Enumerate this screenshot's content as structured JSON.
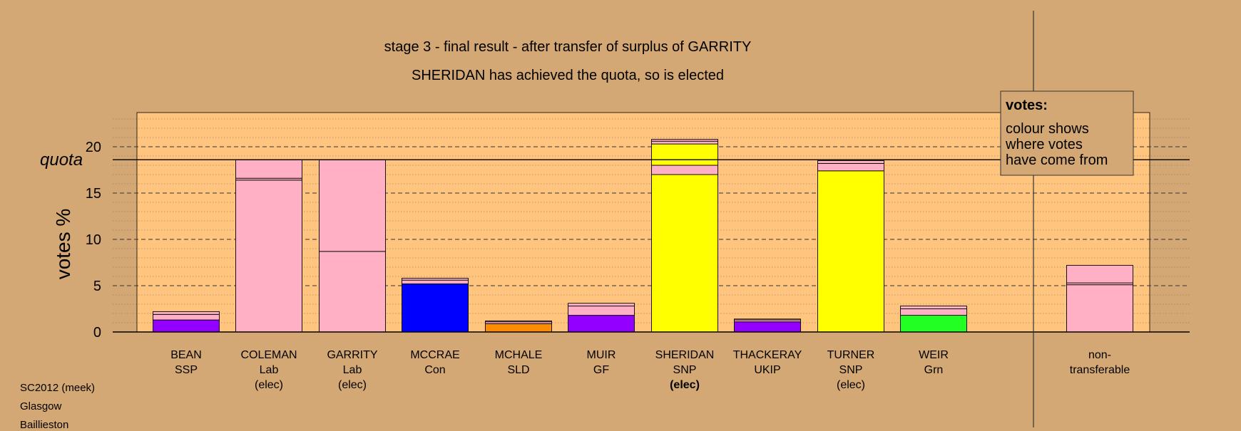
{
  "chart_data": {
    "type": "bar",
    "stacked": true,
    "title": "stage 3 - final result - after transfer of surplus of GARRITY",
    "subtitle": "SHERIDAN has achieved the quota, so is elected",
    "ylabel": "votes %",
    "xlabel": "",
    "ylim": [
      0,
      23.5
    ],
    "yticks": [
      0,
      5,
      10,
      15,
      20
    ],
    "quota_label": "quota",
    "quota_value": 18.6,
    "grid": true,
    "legend": {
      "placement": "top-right",
      "title": "votes:",
      "lines": [
        "colour shows",
        "where votes",
        "have come from"
      ]
    },
    "categories": [
      {
        "name": "BEAN",
        "party": "SSP",
        "status": ""
      },
      {
        "name": "COLEMAN",
        "party": "Lab",
        "status": "(elec)"
      },
      {
        "name": "GARRITY",
        "party": "Lab",
        "status": "(elec)"
      },
      {
        "name": "MCCRAE",
        "party": "Con",
        "status": ""
      },
      {
        "name": "MCHALE",
        "party": "SLD",
        "status": ""
      },
      {
        "name": "MUIR",
        "party": "GF",
        "status": ""
      },
      {
        "name": "SHERIDAN",
        "party": "SNP",
        "status": "(elec)",
        "bold_status": true
      },
      {
        "name": "THACKERAY",
        "party": "UKIP",
        "status": ""
      },
      {
        "name": "TURNER",
        "party": "SNP",
        "status": "(elec)"
      },
      {
        "name": "WEIR",
        "party": "Grn",
        "status": ""
      }
    ],
    "bars": [
      {
        "segments": [
          {
            "value": 1.3,
            "color": "#9400FF"
          },
          {
            "value": 0.6,
            "color": "#FFB0C4"
          },
          {
            "value": 0.3,
            "color": "#FFB0C4"
          }
        ]
      },
      {
        "segments": [
          {
            "value": 16.4,
            "color": "#FFB0C4"
          },
          {
            "value": 0.2,
            "color": "#FFB0C4"
          },
          {
            "value": 2.0,
            "color": "#FFB0C4"
          }
        ]
      },
      {
        "segments": [
          {
            "value": 8.7,
            "color": "#FFB0C4"
          },
          {
            "value": 9.9,
            "color": "#FFB0C4"
          }
        ]
      },
      {
        "segments": [
          {
            "value": 5.2,
            "color": "#0000FF"
          },
          {
            "value": 0.4,
            "color": "#FFB0C4"
          },
          {
            "value": 0.2,
            "color": "#FFB0C4"
          }
        ]
      },
      {
        "segments": [
          {
            "value": 0.9,
            "color": "#FF8C00"
          },
          {
            "value": 0.2,
            "color": "#FFB0C4"
          },
          {
            "value": 0.1,
            "color": "#FFB0C4"
          }
        ]
      },
      {
        "segments": [
          {
            "value": 1.8,
            "color": "#9400FF"
          },
          {
            "value": 1.0,
            "color": "#FFB0C4"
          },
          {
            "value": 0.3,
            "color": "#FFB0C4"
          }
        ]
      },
      {
        "segments": [
          {
            "value": 17.0,
            "color": "#FFFF00"
          },
          {
            "value": 1.0,
            "color": "#FFB0C4"
          },
          {
            "value": 2.3,
            "color": "#FFFF00"
          },
          {
            "value": 0.3,
            "color": "#FFB0C4"
          },
          {
            "value": 0.2,
            "color": "#FFB0C4"
          }
        ]
      },
      {
        "segments": [
          {
            "value": 1.1,
            "color": "#9400FF"
          },
          {
            "value": 0.2,
            "color": "#FFB0C4"
          },
          {
            "value": 0.1,
            "color": "#FFB0C4"
          }
        ]
      },
      {
        "segments": [
          {
            "value": 17.4,
            "color": "#FFFF00"
          },
          {
            "value": 0.8,
            "color": "#FFB0C4"
          },
          {
            "value": 0.3,
            "color": "#FFB0C4"
          }
        ]
      },
      {
        "segments": [
          {
            "value": 1.8,
            "color": "#22FF22"
          },
          {
            "value": 0.7,
            "color": "#FFB0C4"
          },
          {
            "value": 0.3,
            "color": "#FFB0C4"
          }
        ]
      }
    ],
    "non_transferable": {
      "label_lines": [
        "non-",
        "transferable"
      ],
      "segments": [
        {
          "value": 5.1,
          "color": "#FFB0C4"
        },
        {
          "value": 0.2,
          "color": "#FFB0C4"
        },
        {
          "value": 1.9,
          "color": "#FFB0C4"
        }
      ]
    },
    "colors": {
      "background": "#D4A875",
      "plot_area": "#FFC57F",
      "pink": "#FFB0C4",
      "snp_yellow": "#FFFF00",
      "con_blue": "#0000FF",
      "ld_orange": "#FF8C00",
      "purple": "#9400FF",
      "green": "#22FF22"
    }
  },
  "footer": {
    "line1": "SC2012 (meek)",
    "line2": "Glasgow",
    "line3": "Baillieston"
  }
}
